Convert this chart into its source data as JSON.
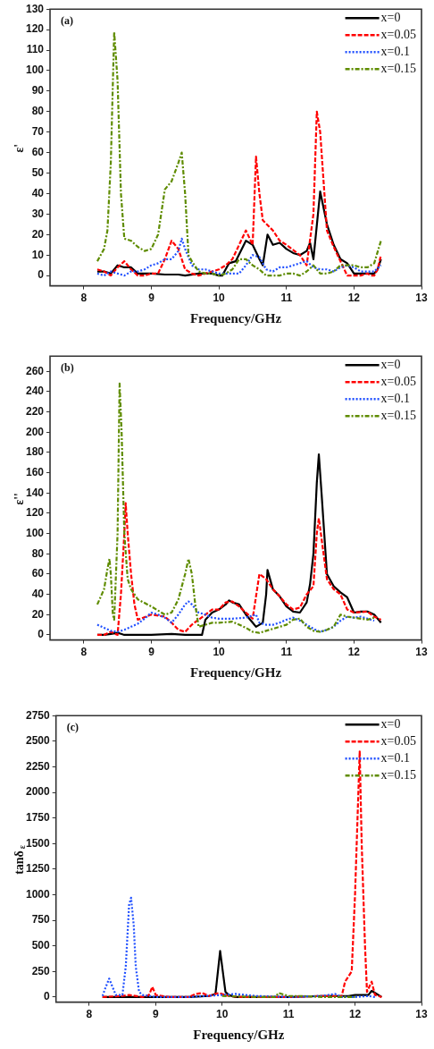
{
  "chart_data": [
    {
      "type": "line",
      "annotations": [
        "(a)"
      ],
      "xlabel": "Frequency/GHz",
      "ylabel": "ε'",
      "xlim": [
        7.5,
        13
      ],
      "xticks": [
        8,
        9,
        10,
        11,
        12,
        13
      ],
      "ylim": [
        -5,
        130
      ],
      "yticks": [
        0,
        10,
        20,
        30,
        40,
        50,
        60,
        70,
        80,
        90,
        100,
        110,
        120,
        130
      ],
      "legend": "top right",
      "grid": false,
      "marker": "none",
      "series": [
        {
          "name": "x=0",
          "color": "#000000",
          "line_style": "solid",
          "x": [
            8.2,
            8.3,
            8.4,
            8.5,
            8.6,
            8.7,
            8.8,
            8.9,
            9.0,
            9.2,
            9.4,
            9.5,
            9.7,
            9.8,
            9.9,
            10.0,
            10.05,
            10.1,
            10.15,
            10.25,
            10.4,
            10.5,
            10.6,
            10.65,
            10.72,
            10.8,
            10.9,
            11.0,
            11.1,
            11.2,
            11.3,
            11.35,
            11.4,
            11.5,
            11.6,
            11.7,
            11.8,
            11.9,
            12.0,
            12.1,
            12.2,
            12.3,
            12.35,
            12.4
          ],
          "values": [
            2,
            2,
            1,
            5,
            4,
            4,
            1,
            1,
            1,
            0.5,
            0.5,
            0,
            1,
            1,
            1,
            0,
            0,
            3,
            6,
            7,
            17,
            15,
            8,
            5,
            20,
            15,
            16,
            13,
            11,
            10,
            12,
            16,
            8,
            41,
            25,
            15,
            8,
            6,
            1,
            1,
            1,
            1,
            3,
            8
          ]
        },
        {
          "name": "x=0.05",
          "color": "#ff0000",
          "line_style": "dashed",
          "x": [
            8.2,
            8.3,
            8.4,
            8.5,
            8.6,
            8.7,
            8.8,
            8.9,
            9.0,
            9.1,
            9.2,
            9.3,
            9.4,
            9.5,
            9.6,
            9.7,
            9.8,
            9.9,
            10.0,
            10.1,
            10.2,
            10.3,
            10.4,
            10.5,
            10.55,
            10.6,
            10.65,
            10.8,
            10.9,
            11.0,
            11.2,
            11.3,
            11.4,
            11.45,
            11.5,
            11.6,
            11.7,
            11.8,
            11.9,
            12.0,
            12.1,
            12.2,
            12.25,
            12.3,
            12.35,
            12.4
          ],
          "values": [
            3,
            2,
            0,
            4,
            7,
            3,
            0,
            0,
            1,
            1,
            8,
            17,
            13,
            3,
            1,
            0,
            1,
            2,
            3,
            5,
            8,
            15,
            22,
            15,
            58,
            40,
            27,
            22,
            17,
            15,
            10,
            5,
            30,
            80,
            70,
            22,
            14,
            7,
            0,
            0,
            0,
            1,
            0,
            0,
            3,
            10
          ]
        },
        {
          "name": "x=0.1",
          "color": "#1f4fff",
          "line_style": "dotted",
          "x": [
            8.2,
            8.3,
            8.4,
            8.5,
            8.6,
            8.7,
            8.8,
            8.9,
            9.0,
            9.1,
            9.2,
            9.3,
            9.4,
            9.45,
            9.5,
            9.6,
            9.7,
            9.8,
            9.9,
            10.0,
            10.1,
            10.2,
            10.3,
            10.4,
            10.5,
            10.6,
            10.7,
            10.8,
            10.9,
            11.0,
            11.2,
            11.3,
            11.4,
            11.5,
            11.6,
            11.7,
            11.8,
            11.9,
            12.0,
            12.1,
            12.2,
            12.3,
            12.4
          ],
          "values": [
            1,
            0,
            2,
            1,
            0,
            2,
            2,
            3,
            5,
            6,
            8,
            8,
            12,
            18,
            13,
            5,
            3,
            3,
            2,
            1,
            1,
            1,
            1,
            5,
            10,
            9,
            3,
            2,
            4,
            4,
            6,
            7,
            4,
            3,
            3,
            2,
            4,
            5,
            4,
            2,
            2,
            2,
            5
          ]
        },
        {
          "name": "x=0.15",
          "color": "#5f8c00",
          "line_style": "dashdot",
          "x": [
            8.2,
            8.3,
            8.35,
            8.4,
            8.45,
            8.5,
            8.55,
            8.6,
            8.7,
            8.8,
            8.9,
            9.0,
            9.1,
            9.2,
            9.3,
            9.4,
            9.45,
            9.5,
            9.55,
            9.6,
            9.7,
            9.8,
            9.9,
            10.0,
            10.1,
            10.2,
            10.3,
            10.4,
            10.5,
            10.6,
            10.7,
            10.8,
            10.9,
            11.0,
            11.1,
            11.2,
            11.3,
            11.4,
            11.5,
            11.6,
            11.7,
            11.8,
            11.9,
            12.0,
            12.1,
            12.2,
            12.3,
            12.4
          ],
          "values": [
            7,
            13,
            22,
            55,
            119,
            95,
            40,
            18,
            17,
            14,
            12,
            13,
            20,
            42,
            46,
            55,
            60,
            40,
            10,
            7,
            2,
            1,
            1,
            0,
            1,
            3,
            8,
            8,
            5,
            3,
            0,
            0,
            0,
            1,
            1,
            0,
            2,
            5,
            1,
            1,
            2,
            5,
            5,
            5,
            4,
            4,
            6,
            17
          ]
        }
      ]
    },
    {
      "type": "line",
      "annotations": [
        "(b)"
      ],
      "xlabel": "Frequency/GHz",
      "ylabel": "ε''",
      "xlim": [
        7.5,
        13
      ],
      "xticks": [
        8,
        9,
        10,
        11,
        12,
        13
      ],
      "ylim": [
        -5,
        275
      ],
      "yticks": [
        0,
        20,
        40,
        60,
        80,
        100,
        120,
        140,
        160,
        180,
        200,
        220,
        240,
        260
      ],
      "legend": "top right",
      "grid": false,
      "marker": "none",
      "series": [
        {
          "name": "x=0",
          "color": "#000000",
          "line_style": "solid",
          "x": [
            8.2,
            8.3,
            8.4,
            8.5,
            8.55,
            8.6,
            8.7,
            9.0,
            9.3,
            9.5,
            9.7,
            9.75,
            9.8,
            9.9,
            10.0,
            10.1,
            10.15,
            10.2,
            10.3,
            10.4,
            10.5,
            10.55,
            10.65,
            10.7,
            10.72,
            10.8,
            10.9,
            11.0,
            11.1,
            11.2,
            11.3,
            11.35,
            11.4,
            11.45,
            11.48,
            11.52,
            11.6,
            11.7,
            11.8,
            11.9,
            12.0,
            12.1,
            12.2,
            12.3,
            12.4
          ],
          "values": [
            0,
            0,
            1,
            2,
            1,
            0,
            0,
            0,
            1,
            0,
            0,
            0,
            15,
            22,
            25,
            30,
            34,
            32,
            30,
            20,
            12,
            8,
            12,
            40,
            64,
            45,
            38,
            28,
            23,
            22,
            32,
            50,
            80,
            150,
            178,
            140,
            60,
            48,
            42,
            37,
            22,
            23,
            23,
            20,
            12
          ]
        },
        {
          "name": "x=0.05",
          "color": "#ff0000",
          "line_style": "dashed",
          "x": [
            8.2,
            8.3,
            8.4,
            8.5,
            8.55,
            8.6,
            8.62,
            8.65,
            8.7,
            8.75,
            8.8,
            9.0,
            9.2,
            9.3,
            9.4,
            9.5,
            9.6,
            9.7,
            9.8,
            9.9,
            10.0,
            10.1,
            10.2,
            10.3,
            10.4,
            10.5,
            10.6,
            10.7,
            10.8,
            10.9,
            11.0,
            11.1,
            11.2,
            11.3,
            11.4,
            11.45,
            11.48,
            11.55,
            11.6,
            11.7,
            11.8,
            11.9,
            12.0,
            12.2,
            12.3,
            12.4
          ],
          "values": [
            0,
            0,
            3,
            0,
            40,
            100,
            130,
            100,
            60,
            30,
            15,
            20,
            18,
            12,
            5,
            3,
            10,
            15,
            20,
            25,
            25,
            32,
            33,
            28,
            22,
            16,
            60,
            55,
            45,
            38,
            30,
            25,
            27,
            40,
            48,
            100,
            115,
            80,
            55,
            45,
            40,
            25,
            22,
            23,
            18,
            15
          ]
        },
        {
          "name": "x=0.1",
          "color": "#1f4fff",
          "line_style": "dotted",
          "x": [
            8.2,
            8.3,
            8.4,
            8.5,
            8.6,
            8.7,
            8.8,
            8.9,
            9.0,
            9.1,
            9.2,
            9.3,
            9.4,
            9.5,
            9.55,
            9.6,
            9.7,
            9.8,
            9.9,
            10.0,
            10.2,
            10.4,
            10.55,
            10.6,
            10.7,
            10.8,
            10.9,
            11.0,
            11.1,
            11.2,
            11.3,
            11.4,
            11.5,
            11.6,
            11.7,
            11.8,
            11.9,
            12.0,
            12.1,
            12.2,
            12.3
          ],
          "values": [
            10,
            7,
            4,
            3,
            5,
            8,
            11,
            16,
            22,
            20,
            17,
            12,
            20,
            30,
            33,
            30,
            22,
            20,
            17,
            16,
            16,
            17,
            20,
            12,
            10,
            10,
            12,
            15,
            17,
            14,
            10,
            6,
            3,
            5,
            8,
            14,
            18,
            17,
            18,
            16,
            14
          ]
        },
        {
          "name": "x=0.15",
          "color": "#5f8c00",
          "line_style": "dashdot",
          "x": [
            8.2,
            8.3,
            8.35,
            8.38,
            8.4,
            8.43,
            8.45,
            8.5,
            8.53,
            8.56,
            8.6,
            8.65,
            8.7,
            8.8,
            9.0,
            9.2,
            9.3,
            9.4,
            9.5,
            9.55,
            9.6,
            9.65,
            9.7,
            9.8,
            9.9,
            10.0,
            10.2,
            10.3,
            10.4,
            10.5,
            10.6,
            10.7,
            10.9,
            11.0,
            11.1,
            11.2,
            11.3,
            11.4,
            11.5,
            11.6,
            11.7,
            11.8,
            11.9,
            12.0,
            12.2,
            12.3
          ],
          "values": [
            30,
            45,
            65,
            75,
            60,
            20,
            15,
            100,
            248,
            200,
            100,
            55,
            45,
            35,
            28,
            20,
            22,
            35,
            60,
            75,
            60,
            30,
            8,
            10,
            12,
            12,
            13,
            10,
            7,
            3,
            2,
            4,
            8,
            10,
            15,
            16,
            8,
            4,
            3,
            5,
            8,
            20,
            18,
            17,
            15,
            17
          ]
        }
      ]
    },
    {
      "type": "line",
      "annotations": [
        "(c)"
      ],
      "xlabel": "Frequency/GHz",
      "ylabel": "tanδ$_{ε}$",
      "xlim": [
        7.5,
        13
      ],
      "xticks": [
        8,
        9,
        10,
        11,
        12,
        13
      ],
      "ylim": [
        -50,
        2750
      ],
      "yticks": [
        0,
        250,
        500,
        750,
        1000,
        1250,
        1500,
        1750,
        2000,
        2250,
        2500,
        2750
      ],
      "legend": "top right",
      "grid": false,
      "marker": "none",
      "series": [
        {
          "name": "x=0",
          "color": "#000000",
          "line_style": "solid",
          "x": [
            8.2,
            8.5,
            8.9,
            9.5,
            9.8,
            9.9,
            9.97,
            10.05,
            10.1,
            10.2,
            11.0,
            11.5,
            11.9,
            12.0,
            12.2,
            12.25,
            12.3,
            12.4
          ],
          "values": [
            0,
            0,
            0,
            0,
            10,
            30,
            450,
            50,
            20,
            0,
            0,
            10,
            10,
            20,
            20,
            60,
            40,
            0
          ]
        },
        {
          "name": "x=0.05",
          "color": "#ff0000",
          "line_style": "dashed",
          "x": [
            8.2,
            8.5,
            8.6,
            8.8,
            8.9,
            8.95,
            9.0,
            9.2,
            9.5,
            9.6,
            9.7,
            9.8,
            9.95,
            10.1,
            10.3,
            11.0,
            11.5,
            11.8,
            11.85,
            11.95,
            12.0,
            12.05,
            12.07,
            12.1,
            12.15,
            12.18,
            12.2,
            12.25,
            12.3,
            12.4
          ],
          "values": [
            0,
            10,
            20,
            0,
            20,
            100,
            20,
            0,
            0,
            30,
            40,
            10,
            40,
            10,
            0,
            0,
            10,
            10,
            150,
            250,
            1000,
            2000,
            2400,
            1500,
            500,
            50,
            80,
            150,
            20,
            0
          ]
        },
        {
          "name": "x=0.1",
          "color": "#1f4fff",
          "line_style": "dotted",
          "x": [
            8.2,
            8.25,
            8.3,
            8.35,
            8.4,
            8.5,
            8.55,
            8.6,
            8.63,
            8.67,
            8.7,
            8.75,
            8.8,
            9.0,
            9.5,
            10.0,
            10.2,
            10.5,
            11.0,
            11.5,
            11.7,
            11.8,
            12.0,
            12.2,
            12.3
          ],
          "values": [
            10,
            100,
            180,
            100,
            20,
            20,
            300,
            900,
            970,
            700,
            300,
            50,
            20,
            0,
            0,
            20,
            30,
            10,
            0,
            10,
            30,
            0,
            0,
            10,
            0
          ]
        },
        {
          "name": "x=0.15",
          "color": "#5f8c00",
          "line_style": "dashdot",
          "x": [
            10.0,
            10.5,
            10.8,
            10.85,
            11.0,
            11.2,
            11.5,
            12.0
          ],
          "values": [
            10,
            0,
            0,
            40,
            10,
            10,
            0,
            0
          ]
        }
      ]
    }
  ]
}
